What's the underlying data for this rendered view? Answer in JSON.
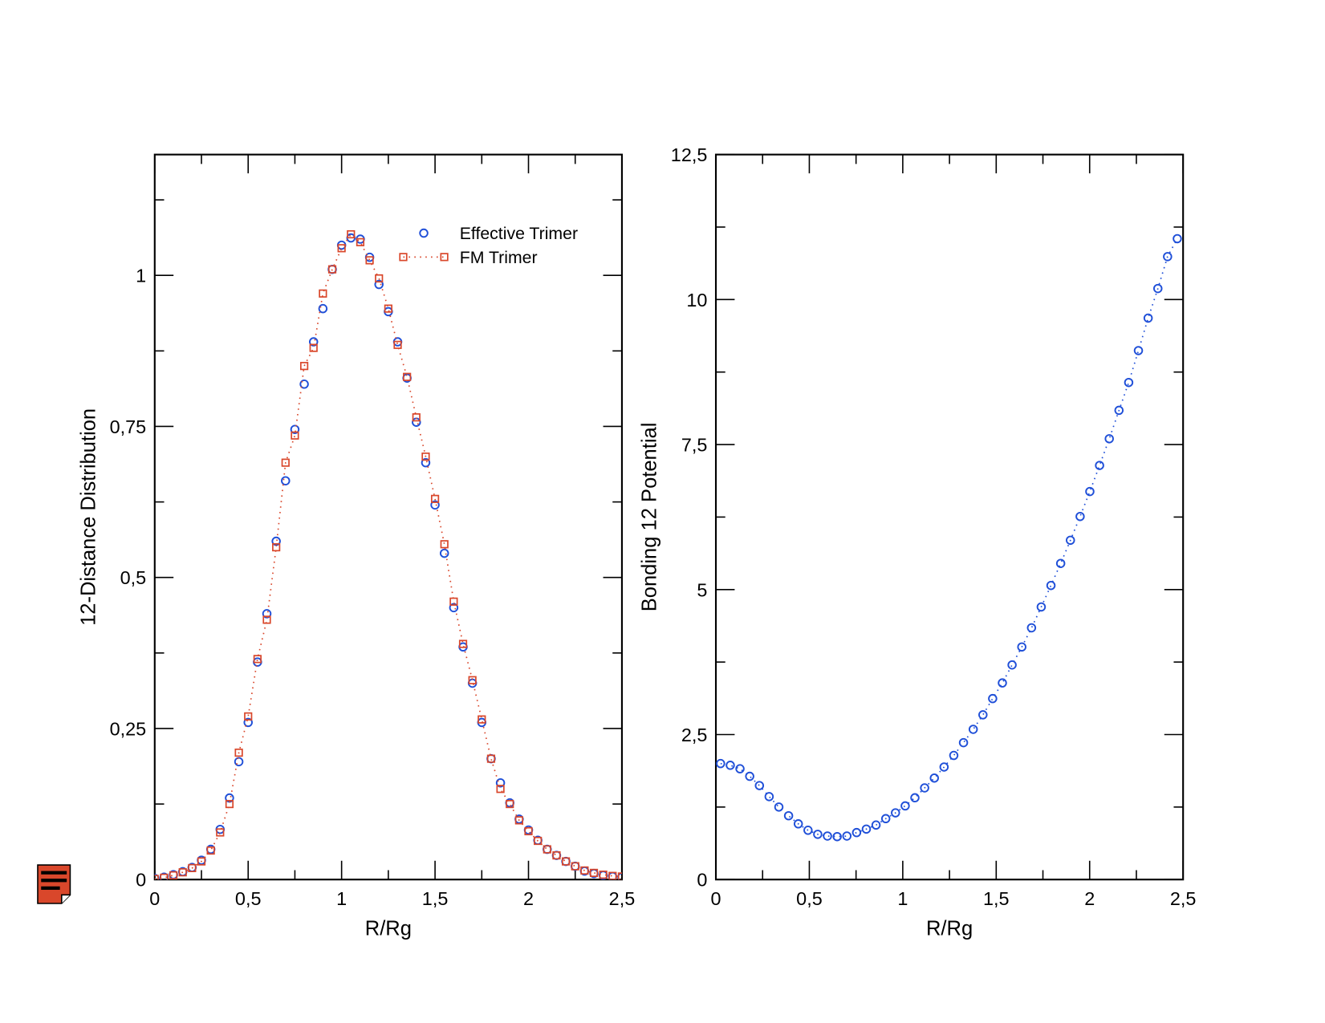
{
  "chart_data": [
    {
      "type": "line",
      "xlabel": "R/Rg",
      "ylabel": "12-Distance Distribution",
      "xlim": [
        0,
        2.5
      ],
      "xticks": [
        0,
        {
          "value": 0.5,
          "label": "0,5"
        },
        1,
        {
          "value": 1.5,
          "label": "1,5"
        },
        2,
        {
          "value": 2.5,
          "label": "2,5"
        }
      ],
      "xminorticks": [
        0.25,
        0.75,
        1.25,
        1.75,
        2.25
      ],
      "ylim": [
        0,
        1.2
      ],
      "yticks": [
        0,
        {
          "value": 0.25,
          "label": "0,25"
        },
        {
          "value": 0.5,
          "label": "0,5"
        },
        {
          "value": 0.75,
          "label": "0,75"
        },
        1
      ],
      "yminorticks": [
        0.125,
        0.375,
        0.625,
        0.875,
        1.125
      ],
      "legend": "upper right",
      "x": [
        0,
        0.05,
        0.1,
        0.15,
        0.2,
        0.25,
        0.3,
        0.35,
        0.4,
        0.45,
        0.5,
        0.55,
        0.6,
        0.65,
        0.7,
        0.75,
        0.8,
        0.85,
        0.9,
        0.95,
        1,
        1.05,
        1.1,
        1.15,
        1.2,
        1.25,
        1.3,
        1.35,
        1.4,
        1.45,
        1.5,
        1.55,
        1.6,
        1.65,
        1.7,
        1.75,
        1.8,
        1.85,
        1.9,
        1.95,
        2,
        2.05,
        2.1,
        2.15,
        2.2,
        2.25,
        2.3,
        2.35,
        2.4,
        2.45,
        2.5
      ],
      "series": [
        {
          "name": "Effective Trimer",
          "color": "#1f4fd8",
          "marker": "circle",
          "linestyle": "none",
          "values": [
            0.002,
            0.004,
            0.008,
            0.013,
            0.02,
            0.032,
            0.05,
            0.083,
            0.135,
            0.195,
            0.26,
            0.36,
            0.44,
            0.56,
            0.66,
            0.745,
            0.82,
            0.89,
            0.945,
            1.01,
            1.05,
            1.062,
            1.06,
            1.03,
            0.985,
            0.94,
            0.89,
            0.83,
            0.757,
            0.69,
            0.62,
            0.54,
            0.45,
            0.385,
            0.325,
            0.26,
            0.2,
            0.16,
            0.127,
            0.1,
            0.082,
            0.065,
            0.05,
            0.04,
            0.03,
            0.022,
            0.014,
            0.01,
            0.007,
            0.005,
            0.004
          ]
        },
        {
          "name": "FM Trimer",
          "color": "#d9472b",
          "marker": "square",
          "linestyle": "dotted",
          "values": [
            0.001,
            0.003,
            0.007,
            0.012,
            0.019,
            0.03,
            0.048,
            0.078,
            0.125,
            0.21,
            0.27,
            0.365,
            0.43,
            0.55,
            0.69,
            0.735,
            0.85,
            0.88,
            0.97,
            1.01,
            1.045,
            1.068,
            1.055,
            1.025,
            0.995,
            0.945,
            0.885,
            0.832,
            0.765,
            0.7,
            0.63,
            0.555,
            0.46,
            0.39,
            0.33,
            0.265,
            0.2,
            0.15,
            0.125,
            0.098,
            0.08,
            0.064,
            0.05,
            0.04,
            0.03,
            0.022,
            0.015,
            0.011,
            0.008,
            0.006,
            0.005
          ]
        }
      ]
    },
    {
      "type": "line",
      "xlabel": "R/Rg",
      "ylabel": "Bonding 12 Potential",
      "xlim": [
        0,
        2.5
      ],
      "xticks": [
        0,
        {
          "value": 0.5,
          "label": "0,5"
        },
        1,
        {
          "value": 1.5,
          "label": "1,5"
        },
        2,
        {
          "value": 2.5,
          "label": "2,5"
        }
      ],
      "xminorticks": [
        0.25,
        0.75,
        1.25,
        1.75,
        2.25
      ],
      "ylim": [
        0,
        12.5
      ],
      "yticks": [
        0,
        {
          "value": 2.5,
          "label": "2,5"
        },
        5,
        {
          "value": 7.5,
          "label": "7,5"
        },
        10,
        {
          "value": 12.5,
          "label": "12,5"
        }
      ],
      "yminorticks": [
        1.25,
        3.75,
        6.25,
        8.75,
        11.25
      ],
      "x": [
        0.025,
        0.077,
        0.129,
        0.181,
        0.233,
        0.285,
        0.337,
        0.389,
        0.441,
        0.493,
        0.545,
        0.597,
        0.649,
        0.701,
        0.753,
        0.805,
        0.857,
        0.909,
        0.961,
        1.013,
        1.065,
        1.117,
        1.169,
        1.221,
        1.273,
        1.325,
        1.377,
        1.429,
        1.481,
        1.533,
        1.585,
        1.637,
        1.689,
        1.741,
        1.793,
        1.845,
        1.897,
        1.949,
        2.001,
        2.053,
        2.105,
        2.157,
        2.209,
        2.261,
        2.313,
        2.365,
        2.417,
        2.469
      ],
      "series": [
        {
          "color": "#1f4fd8",
          "marker": "circle",
          "linestyle": "dotted",
          "values": [
            2.0,
            1.97,
            1.91,
            1.78,
            1.62,
            1.43,
            1.25,
            1.1,
            0.96,
            0.85,
            0.78,
            0.75,
            0.74,
            0.75,
            0.81,
            0.87,
            0.94,
            1.05,
            1.15,
            1.27,
            1.41,
            1.58,
            1.75,
            1.94,
            2.14,
            2.36,
            2.59,
            2.84,
            3.12,
            3.39,
            3.7,
            4.01,
            4.34,
            4.7,
            5.07,
            5.45,
            5.85,
            6.26,
            6.69,
            7.14,
            7.6,
            8.09,
            8.57,
            9.12,
            9.68,
            10.19,
            10.74,
            11.05
          ]
        }
      ]
    }
  ]
}
